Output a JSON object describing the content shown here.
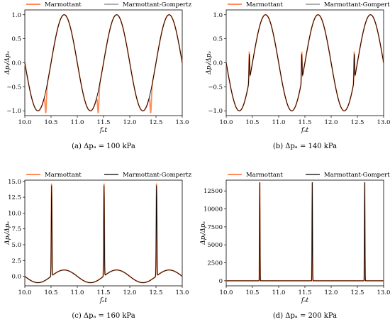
{
  "colors": {
    "marmottant": "#ff8c5a",
    "gompertz": "#000000",
    "gompertz_ab": "#7f7f7f"
  },
  "chart_data": [
    {
      "type": "line",
      "caption": "(a) Δpₐ = 100 kPa",
      "xlabel": "fₐt",
      "ylabel": "Δpᵢ/Δpₐ",
      "xlim": [
        10.0,
        13.0
      ],
      "ylim": [
        -1.1,
        1.1
      ],
      "xticks": [
        "10.0",
        "10.5",
        "11.0",
        "11.5",
        "12.0",
        "12.5",
        "13.0"
      ],
      "xtick_values": [
        10.0,
        10.5,
        11.0,
        11.5,
        12.0,
        12.5,
        13.0
      ],
      "yticks": [
        "−1.0",
        "−0.5",
        "0.0",
        "0.5",
        "1.0"
      ],
      "ytick_values": [
        -1.0,
        -0.5,
        0.0,
        0.5,
        1.0
      ],
      "legend": [
        "Marmottant",
        "Marmottant-Gompertz"
      ],
      "series": [
        {
          "name": "Marmottant",
          "kind": "sine",
          "period": 1.0,
          "peak": 10.75,
          "spikes": [
            {
              "x": 10.4,
              "h": -0.45
            },
            {
              "x": 11.4,
              "h": -0.45
            },
            {
              "x": 12.4,
              "h": -0.45
            }
          ]
        },
        {
          "name": "Marmottant-Gompertz",
          "kind": "sine",
          "period": 1.0,
          "peak": 10.75,
          "spikes": []
        }
      ]
    },
    {
      "type": "line",
      "caption": "(b) Δpₐ = 140 kPa",
      "xlabel": "fₐt",
      "ylabel": "Δpᵢ/Δpₐ",
      "xlim": [
        10.0,
        13.0
      ],
      "ylim": [
        -1.1,
        1.1
      ],
      "xticks": [
        "10.0",
        "10.5",
        "11.0",
        "11.5",
        "12.0",
        "12.5",
        "13.0"
      ],
      "xtick_values": [
        10.0,
        10.5,
        11.0,
        11.5,
        12.0,
        12.5,
        13.0
      ],
      "yticks": [
        "−1.0",
        "−0.5",
        "0.0",
        "0.5",
        "1.0"
      ],
      "ytick_values": [
        -1.0,
        -0.5,
        0.0,
        0.5,
        1.0
      ],
      "legend": [
        "Marmottant",
        "Marmottant-Gompertz"
      ],
      "series": [
        {
          "name": "Marmottant",
          "kind": "sine",
          "period": 1.0,
          "peak": 10.75,
          "spikes": [
            {
              "x": 10.44,
              "h": 0.6
            },
            {
              "x": 11.44,
              "h": 0.6
            },
            {
              "x": 12.44,
              "h": 0.6
            }
          ]
        },
        {
          "name": "Marmottant-Gompertz",
          "kind": "sine",
          "period": 1.0,
          "peak": 10.75,
          "spikes": [
            {
              "x": 10.44,
              "h": 0.55
            },
            {
              "x": 11.44,
              "h": 0.55
            },
            {
              "x": 12.44,
              "h": 0.55
            }
          ]
        }
      ]
    },
    {
      "type": "line",
      "caption": "(c) Δpₐ = 160 kPa",
      "xlabel": "fₐt",
      "ylabel": "Δpᵢ/Δpₐ",
      "xlim": [
        10.0,
        13.0
      ],
      "ylim": [
        -1.5,
        15.2
      ],
      "xticks": [
        "10.0",
        "10.5",
        "11.0",
        "11.5",
        "12.0",
        "12.5",
        "13.0"
      ],
      "xtick_values": [
        10.0,
        10.5,
        11.0,
        11.5,
        12.0,
        12.5,
        13.0
      ],
      "yticks": [
        "0.0",
        "2.5",
        "5.0",
        "7.5",
        "10.0",
        "12.5",
        "15.0"
      ],
      "ytick_values": [
        0.0,
        2.5,
        5.0,
        7.5,
        10.0,
        12.5,
        15.0
      ],
      "legend": [
        "Marmottant",
        "Marmottant-Gompertz"
      ],
      "series": [
        {
          "name": "Marmottant",
          "kind": "sine",
          "period": 1.0,
          "peak": 10.75,
          "spikes": [
            {
              "x": 10.51,
              "h": 14.6
            },
            {
              "x": 11.51,
              "h": 14.6
            },
            {
              "x": 12.51,
              "h": 14.6
            }
          ]
        },
        {
          "name": "Marmottant-Gompertz",
          "kind": "sine",
          "period": 1.0,
          "peak": 10.75,
          "spikes": [
            {
              "x": 10.51,
              "h": 14.3
            },
            {
              "x": 11.51,
              "h": 14.3
            },
            {
              "x": 12.51,
              "h": 14.3
            }
          ]
        }
      ]
    },
    {
      "type": "line",
      "caption": "(d) Δpₐ = 200 kPa",
      "xlabel": "fₐt",
      "ylabel": "Δpᵢ/Δpₐ",
      "xlim": [
        10.0,
        13.0
      ],
      "ylim": [
        -700,
        14000
      ],
      "xticks": [
        "10.0",
        "10.5",
        "11.0",
        "11.5",
        "12.0",
        "12.5",
        "13.0"
      ],
      "xtick_values": [
        10.0,
        10.5,
        11.0,
        11.5,
        12.0,
        12.5,
        13.0
      ],
      "yticks": [
        "0",
        "2500",
        "5000",
        "7500",
        "10000",
        "12500"
      ],
      "ytick_values": [
        0,
        2500,
        5000,
        7500,
        10000,
        12500
      ],
      "legend": [
        "Marmottant",
        "Marmottant-Gompertz"
      ],
      "series": [
        {
          "name": "Marmottant",
          "kind": "flat",
          "period": 1.0,
          "peak": 10.75,
          "spikes": [
            {
              "x": 10.64,
              "h": 13700
            },
            {
              "x": 11.64,
              "h": 13700
            },
            {
              "x": 12.64,
              "h": 13700
            }
          ]
        },
        {
          "name": "Marmottant-Gompertz",
          "kind": "flat",
          "period": 1.0,
          "peak": 10.75,
          "spikes": [
            {
              "x": 10.64,
              "h": 13700
            },
            {
              "x": 11.64,
              "h": 13700
            },
            {
              "x": 12.64,
              "h": 13700
            }
          ]
        }
      ]
    }
  ]
}
